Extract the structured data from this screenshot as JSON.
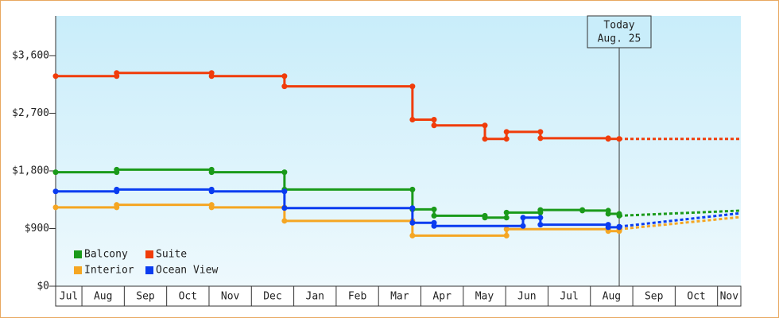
{
  "chart_data": {
    "type": "step-line",
    "categories": [
      "Jul",
      "Aug",
      "Sep",
      "Oct",
      "Nov",
      "Dec",
      "Jan",
      "Feb",
      "Mar",
      "Apr",
      "May",
      "Jun",
      "Jul",
      "Aug",
      "Sep",
      "Oct",
      "Nov"
    ],
    "xlim": [
      0,
      16.17
    ],
    "xticks": [
      0.62,
      1.62,
      2.62,
      3.62,
      4.62,
      5.62,
      6.62,
      7.62,
      8.62,
      9.62,
      10.62,
      11.62,
      12.62,
      13.62,
      14.62,
      15.62
    ],
    "ylim": [
      0,
      4220
    ],
    "yticks": [
      {
        "value": 0,
        "label": "$0"
      },
      {
        "value": 900,
        "label": "$900"
      },
      {
        "value": 1800,
        "label": "$1,800"
      },
      {
        "value": 2700,
        "label": "$2,700"
      },
      {
        "value": 3600,
        "label": "$3,600"
      }
    ],
    "today_x": 13.3,
    "annotation": [
      "Today",
      "Aug. 25"
    ],
    "forecast_x": [
      13.3,
      16.17
    ],
    "series": [
      {
        "name": "Balcony",
        "color": "#1a9a1a",
        "x": [
          0,
          1.44,
          3.68,
          5.4,
          8.42,
          8.93,
          10.13,
          10.64,
          11.44,
          12.43,
          13.04,
          13.3
        ],
        "values": [
          1780,
          1820,
          1780,
          1510,
          1200,
          1100,
          1070,
          1150,
          1190,
          1180,
          1130,
          1100
        ],
        "forecast_values": [
          1100,
          1180
        ]
      },
      {
        "name": "Suite",
        "color": "#f03c0a",
        "x": [
          0,
          1.44,
          3.68,
          5.4,
          8.42,
          8.93,
          10.13,
          10.64,
          11.44,
          13.04,
          13.3
        ],
        "values": [
          3280,
          3330,
          3280,
          3120,
          2600,
          2510,
          2300,
          2410,
          2310,
          2300,
          2300
        ],
        "forecast_values": [
          2300,
          2300
        ]
      },
      {
        "name": "Interior",
        "color": "#f5a623",
        "x": [
          0,
          1.44,
          3.68,
          5.4,
          8.42,
          10.64,
          13.04,
          13.3
        ],
        "values": [
          1230,
          1270,
          1230,
          1020,
          790,
          890,
          860,
          890
        ],
        "forecast_values": [
          890,
          1080
        ]
      },
      {
        "name": "Ocean View",
        "color": "#0a3cf0",
        "x": [
          0,
          1.44,
          3.68,
          5.4,
          8.42,
          8.93,
          11.03,
          11.44,
          13.04,
          13.3
        ],
        "values": [
          1480,
          1510,
          1480,
          1220,
          990,
          940,
          1070,
          960,
          920,
          930
        ],
        "forecast_values": [
          930,
          1140
        ]
      }
    ]
  }
}
